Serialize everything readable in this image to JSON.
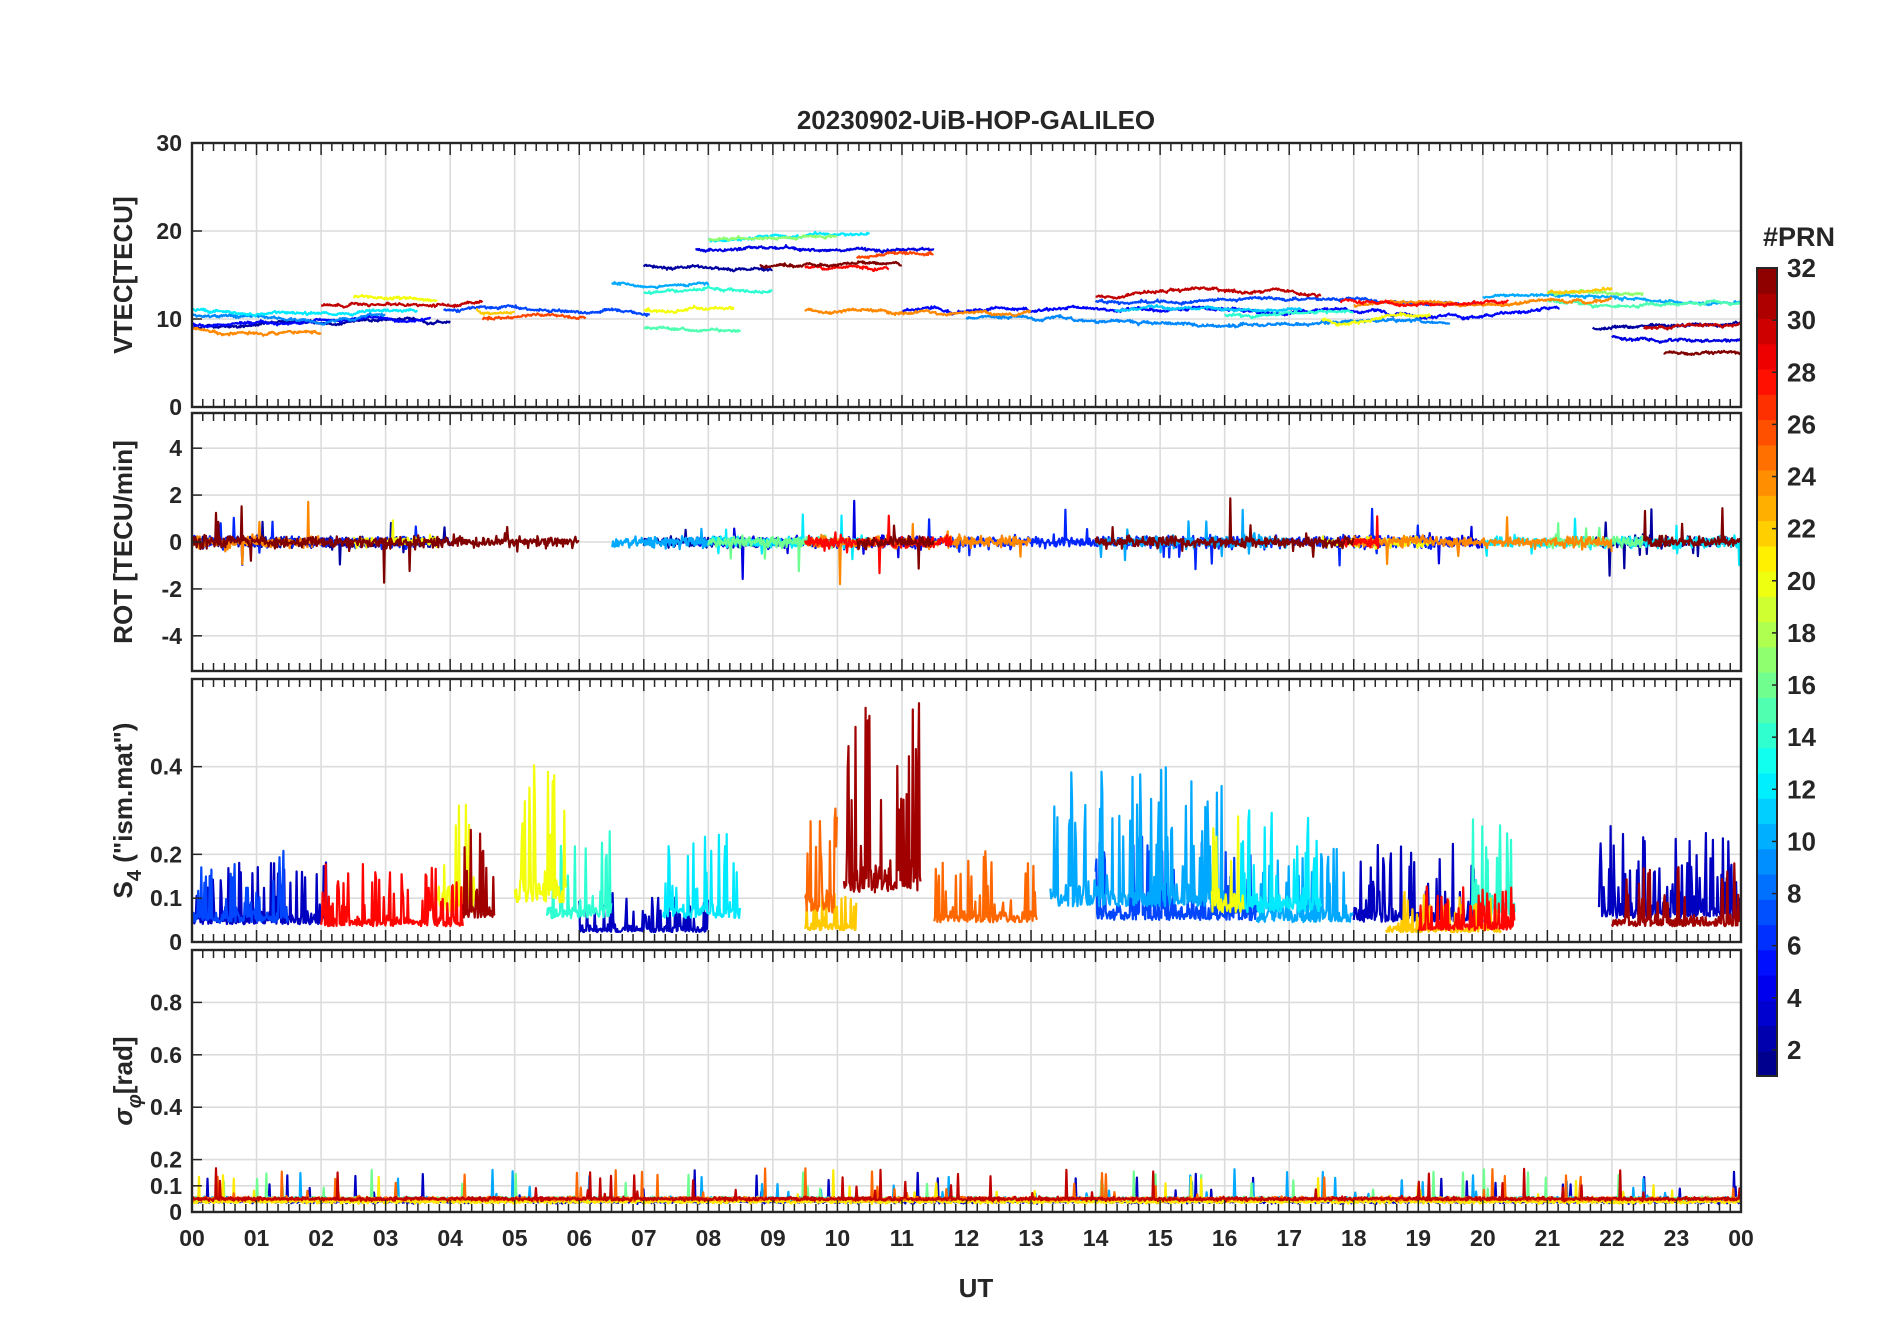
{
  "chart_data": {
    "type": "line",
    "title": "20230902-UiB-HOP-GALILEO",
    "xlabel": "UT",
    "x_ticks": [
      "00",
      "01",
      "02",
      "03",
      "04",
      "05",
      "06",
      "07",
      "08",
      "09",
      "10",
      "11",
      "12",
      "13",
      "14",
      "15",
      "16",
      "17",
      "18",
      "19",
      "20",
      "21",
      "22",
      "23",
      "00"
    ],
    "xlim": [
      0,
      24
    ],
    "grid": true,
    "colorbar": {
      "title": "#PRN",
      "range": [
        1,
        32
      ],
      "ticks": [
        2,
        4,
        6,
        8,
        10,
        12,
        14,
        16,
        18,
        20,
        22,
        24,
        26,
        28,
        30,
        32
      ],
      "colormap": "jet",
      "placement": "right"
    },
    "panels": [
      {
        "id": "vtec",
        "ylabel": "VTEC[TECU]",
        "ylim": [
          0,
          30
        ],
        "yticks": [
          0,
          10,
          20,
          30
        ],
        "series_by_prn": [
          {
            "prn": 2,
            "segments": [
              [
                0.0,
                4.0,
                9.0
              ],
              [
                7.0,
                9.0,
                16.0
              ],
              [
                21.7,
                24.0,
                9.0
              ]
            ]
          },
          {
            "prn": 4,
            "segments": [
              [
                7.8,
                11.5,
                18.0
              ],
              [
                22.0,
                24.0,
                8.0
              ]
            ]
          },
          {
            "prn": 5,
            "segments": [
              [
                0.0,
                3.7,
                9.5
              ],
              [
                11.0,
                21.2,
                11.0
              ]
            ]
          },
          {
            "prn": 7,
            "segments": [
              [
                3.9,
                7.1,
                11.0
              ],
              [
                14.0,
                20.0,
                12.0
              ]
            ]
          },
          {
            "prn": 9,
            "segments": [
              [
                0.0,
                3.0,
                10.5
              ],
              [
                12.0,
                19.5,
                10.0
              ]
            ]
          },
          {
            "prn": 10,
            "segments": [
              [
                6.5,
                8.0,
                14.0
              ],
              [
                20.0,
                24.0,
                12.5
              ]
            ]
          },
          {
            "prn": 11,
            "segments": [
              [
                14.3,
                17.2,
                11.0
              ]
            ]
          },
          {
            "prn": 12,
            "segments": [
              [
                0.0,
                3.5,
                11.0
              ],
              [
                8.0,
                10.5,
                19.0
              ]
            ]
          },
          {
            "prn": 14,
            "segments": [
              [
                7.0,
                9.0,
                13.0
              ],
              [
                16.0,
                18.0,
                10.5
              ]
            ]
          },
          {
            "prn": 15,
            "segments": [
              [
                7.0,
                8.5,
                9.0
              ],
              [
                21.0,
                24.0,
                12.0
              ]
            ]
          },
          {
            "prn": 17,
            "segments": [
              [
                8.0,
                10.0,
                19.0
              ],
              [
                21.0,
                22.5,
                13.0
              ]
            ]
          },
          {
            "prn": 20,
            "segments": [
              [
                2.5,
                3.8,
                12.5
              ],
              [
                7.0,
                8.4,
                11.0
              ],
              [
                17.5,
                19.2,
                10.0
              ]
            ]
          },
          {
            "prn": 22,
            "segments": [
              [
                4.4,
                5.0,
                11.0
              ],
              [
                21.0,
                22.0,
                13.0
              ]
            ]
          },
          {
            "prn": 24,
            "segments": [
              [
                0.0,
                2.0,
                9.0
              ],
              [
                9.5,
                13.0,
                11.0
              ],
              [
                18.0,
                22.0,
                11.5
              ]
            ]
          },
          {
            "prn": 26,
            "segments": [
              [
                4.5,
                6.1,
                10.0
              ],
              [
                10.3,
                11.5,
                17.0
              ]
            ]
          },
          {
            "prn": 28,
            "segments": [
              [
                9.5,
                10.8,
                16.0
              ],
              [
                17.8,
                20.4,
                12.0
              ]
            ]
          },
          {
            "prn": 30,
            "segments": [
              [
                2.0,
                4.5,
                11.5
              ],
              [
                14.0,
                17.5,
                12.5
              ],
              [
                22.5,
                24.0,
                9.0
              ]
            ]
          },
          {
            "prn": 32,
            "segments": [
              [
                8.8,
                11.0,
                16.0
              ],
              [
                22.8,
                24.0,
                6.0
              ]
            ]
          }
        ]
      },
      {
        "id": "rot",
        "ylabel": "ROT [TECU/min]",
        "ylim": [
          -5.5,
          5.5
        ],
        "yticks": [
          -4,
          -2,
          0,
          2,
          4
        ],
        "series_by_prn": [
          {
            "prn": 2,
            "segments": [
              [
                0.0,
                4.0,
                0.0
              ],
              [
                7.0,
                9.0,
                0.0
              ],
              [
                21.7,
                24.0,
                0.0
              ]
            ]
          },
          {
            "prn": 4,
            "segments": [
              [
                7.8,
                11.5,
                0.0
              ],
              [
                18.0,
                20.0,
                0.0
              ]
            ]
          },
          {
            "prn": 6,
            "segments": [
              [
                0.0,
                3.7,
                0.0
              ],
              [
                11.0,
                19.5,
                0.0
              ]
            ]
          },
          {
            "prn": 10,
            "segments": [
              [
                6.5,
                8.0,
                0.0
              ],
              [
                14.0,
                17.0,
                0.0
              ]
            ]
          },
          {
            "prn": 12,
            "segments": [
              [
                8.0,
                10.5,
                0.0
              ],
              [
                20.0,
                24.0,
                0.0
              ]
            ]
          },
          {
            "prn": 16,
            "segments": [
              [
                8.0,
                10.0,
                0.0
              ],
              [
                21.0,
                22.5,
                0.0
              ]
            ]
          },
          {
            "prn": 20,
            "segments": [
              [
                2.5,
                3.8,
                0.0
              ],
              [
                17.5,
                19.2,
                0.0
              ]
            ]
          },
          {
            "prn": 24,
            "segments": [
              [
                0.0,
                2.0,
                0.0
              ],
              [
                9.5,
                13.0,
                0.0
              ],
              [
                18.0,
                22.0,
                0.0
              ]
            ]
          },
          {
            "prn": 28,
            "segments": [
              [
                9.5,
                11.8,
                0.0
              ],
              [
                17.8,
                18.4,
                0.0
              ]
            ]
          },
          {
            "prn": 32,
            "segments": [
              [
                0.0,
                6.0,
                0.0
              ],
              [
                10.3,
                11.5,
                0.0
              ],
              [
                14.0,
                18.0,
                0.0
              ],
              [
                22.5,
                24.0,
                0.0
              ]
            ]
          }
        ]
      },
      {
        "id": "s4",
        "ylabel_main": "S",
        "ylabel_sub": "4",
        "ylabel_rest": " (\"ism.mat\")",
        "ylim": [
          0,
          0.6
        ],
        "yticks": [
          0,
          0.1,
          0.2,
          0.4
        ],
        "series_by_prn": [
          {
            "prn": 3,
            "segments": [
              [
                0.0,
                2.2,
                0.09
              ],
              [
                6.0,
                8.0,
                0.05
              ],
              [
                18.0,
                20.0,
                0.1
              ],
              [
                21.8,
                24.0,
                0.12
              ]
            ]
          },
          {
            "prn": 7,
            "segments": [
              [
                0.0,
                1.5,
                0.1
              ],
              [
                14.0,
                16.5,
                0.11
              ]
            ]
          },
          {
            "prn": 10,
            "segments": [
              [
                13.3,
                16.0,
                0.18
              ],
              [
                16.5,
                18.0,
                0.1
              ]
            ]
          },
          {
            "prn": 12,
            "segments": [
              [
                7.3,
                8.5,
                0.12
              ],
              [
                16.2,
                17.5,
                0.15
              ]
            ]
          },
          {
            "prn": 14,
            "segments": [
              [
                5.5,
                6.5,
                0.12
              ],
              [
                19.8,
                20.5,
                0.13
              ]
            ]
          },
          {
            "prn": 20,
            "segments": [
              [
                3.8,
                4.5,
                0.15
              ],
              [
                5.0,
                5.8,
                0.2
              ],
              [
                15.8,
                16.3,
                0.15
              ]
            ]
          },
          {
            "prn": 22,
            "segments": [
              [
                9.5,
                10.3,
                0.06
              ],
              [
                18.5,
                20.3,
                0.05
              ]
            ]
          },
          {
            "prn": 25,
            "segments": [
              [
                11.5,
                13.1,
                0.1
              ],
              [
                9.5,
                10.0,
                0.15
              ]
            ]
          },
          {
            "prn": 28,
            "segments": [
              [
                2.0,
                4.2,
                0.08
              ],
              [
                19.0,
                20.5,
                0.06
              ]
            ]
          },
          {
            "prn": 31,
            "segments": [
              [
                10.1,
                11.3,
                0.25
              ],
              [
                4.2,
                4.7,
                0.12
              ],
              [
                22.0,
                24.0,
                0.08
              ]
            ]
          }
        ]
      },
      {
        "id": "sigphi",
        "ylabel_main": "σ",
        "ylabel_sub": "φ",
        "ylabel_rest": "[rad]",
        "ylim": [
          0,
          1
        ],
        "yticks": [
          0,
          0.1,
          0.2,
          0.4,
          0.6,
          0.8
        ],
        "series_by_prn": [
          {
            "prn": 3,
            "segments": [
              [
                0.0,
                24.0,
                0.04
              ]
            ]
          },
          {
            "prn": 10,
            "segments": [
              [
                0.0,
                24.0,
                0.05
              ]
            ]
          },
          {
            "prn": 16,
            "segments": [
              [
                0.0,
                24.0,
                0.05
              ]
            ]
          },
          {
            "prn": 21,
            "segments": [
              [
                0.0,
                24.0,
                0.04
              ]
            ]
          },
          {
            "prn": 25,
            "segments": [
              [
                0.0,
                24.0,
                0.05
              ]
            ]
          },
          {
            "prn": 30,
            "segments": [
              [
                0.0,
                24.0,
                0.05
              ]
            ]
          }
        ]
      }
    ]
  }
}
